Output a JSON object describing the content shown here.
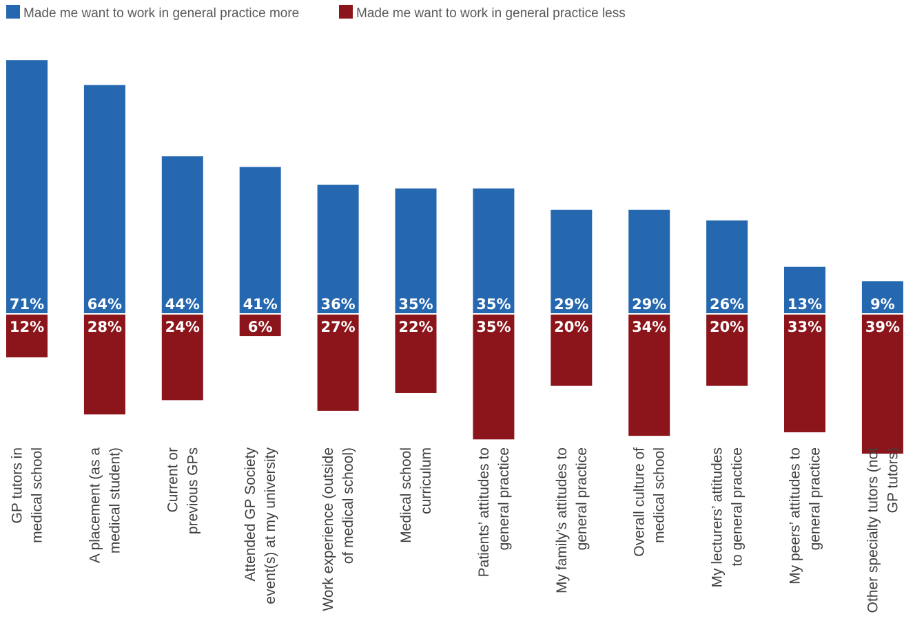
{
  "colors": {
    "more": "#2568B0",
    "less": "#8B151B"
  },
  "legend": {
    "more_label": "Made me want to work in general practice more",
    "less_label": "Made me want to work in general practice less"
  },
  "chart_data": {
    "type": "bar",
    "legend_position": "top-left",
    "grid": false,
    "categories": [
      [
        "GP tutors in",
        "medical school"
      ],
      [
        "A placement (as a",
        "medical student)"
      ],
      [
        "Current or",
        "previous GPs"
      ],
      [
        "Attended GP Society",
        "event(s) at my university"
      ],
      [
        "Work experience (outside",
        "of medical school)"
      ],
      [
        "Medical school",
        "curriculum"
      ],
      [
        "Patients’ attitudes to",
        "general practice"
      ],
      [
        "My family’s attitudes to",
        "general practice"
      ],
      [
        "Overall culture of",
        "medical school"
      ],
      [
        "My lecturers’ attitudes",
        "to general practice"
      ],
      [
        "My peers’ attitudes to",
        "general practice"
      ],
      [
        "Other specialty tutors (not",
        "GP tutors)"
      ]
    ],
    "series": [
      {
        "name": "Made me want to work in general practice more",
        "values": [
          71,
          64,
          44,
          41,
          36,
          35,
          35,
          29,
          29,
          26,
          13,
          9
        ],
        "labels": [
          "71%",
          "64%",
          "44%",
          "41%",
          "36%",
          "35%",
          "35%",
          "29%",
          "29%",
          "26%",
          "13%",
          "9%"
        ]
      },
      {
        "name": "Made me want to work in general practice less",
        "values": [
          12,
          28,
          24,
          6,
          27,
          22,
          35,
          20,
          34,
          20,
          33,
          39
        ],
        "labels": [
          "12%",
          "28%",
          "24%",
          "6%",
          "27%",
          "22%",
          "35%",
          "20%",
          "34%",
          "20%",
          "33%",
          "39%"
        ]
      }
    ]
  }
}
